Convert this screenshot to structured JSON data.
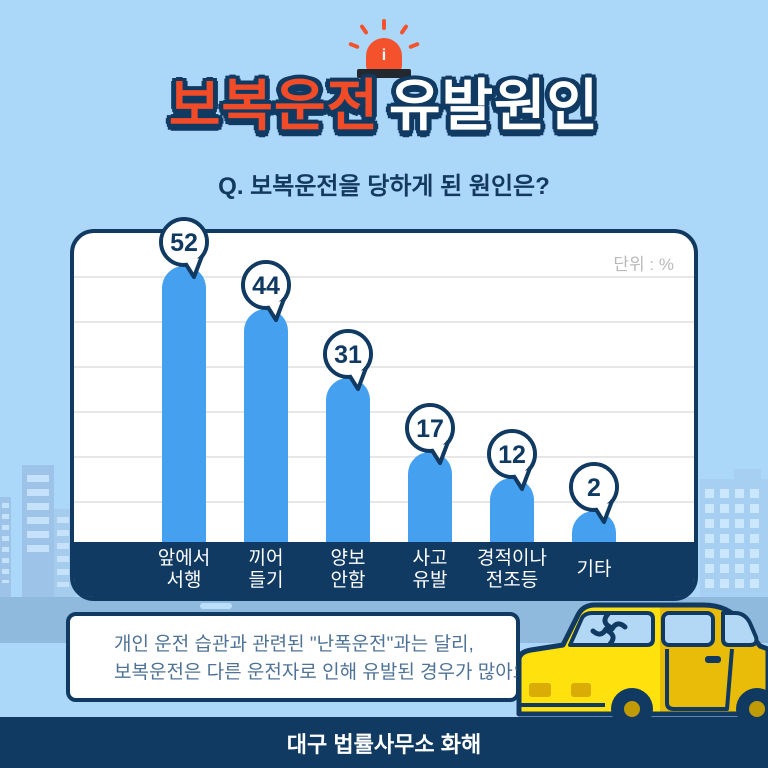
{
  "header": {
    "siren_icon": {
      "name": "siren-icon",
      "light_glyph": "i"
    },
    "title": {
      "part1": "보복운전",
      "part2": "유발원인"
    },
    "question": "Q. 보복운전을 당하게 된 원인은?"
  },
  "chart_data": {
    "type": "bar",
    "title": "보복운전 유발원인",
    "unit_label": "단위 : %",
    "categories": [
      [
        "앞에서",
        "서행"
      ],
      [
        "끼어",
        "들기"
      ],
      [
        "양보",
        "안함"
      ],
      [
        "사고",
        "유발"
      ],
      [
        "경적이나",
        "전조등"
      ],
      [
        "기타"
      ]
    ],
    "values": [
      52,
      44,
      31,
      17,
      12,
      2
    ],
    "bar_color": "#45a1ef",
    "grid": true,
    "value_labels": "speech-bubbles",
    "legend": "none",
    "ylim": [
      0,
      58
    ]
  },
  "note": {
    "line1": "개인 운전 습관과 관련된 \"난폭운전\"과는 달리,",
    "line2": "보복운전은 다른 운전자로 인해 유발된 경우가 많아요."
  },
  "footer": {
    "text": "대구 법률사무소 화해"
  },
  "colors": {
    "background": "#abd7f9",
    "navy": "#113a63",
    "bar_blue": "#45a1ef",
    "title_red": "#f24b28",
    "car_yellow": "#ffe10e",
    "car_yellow_shade": "#e8bc08",
    "ground_blue": "#8fbade",
    "building_blue": "#9dc4e8",
    "note_text": "#4f7396",
    "unit_gray": "#b9b9b9"
  }
}
